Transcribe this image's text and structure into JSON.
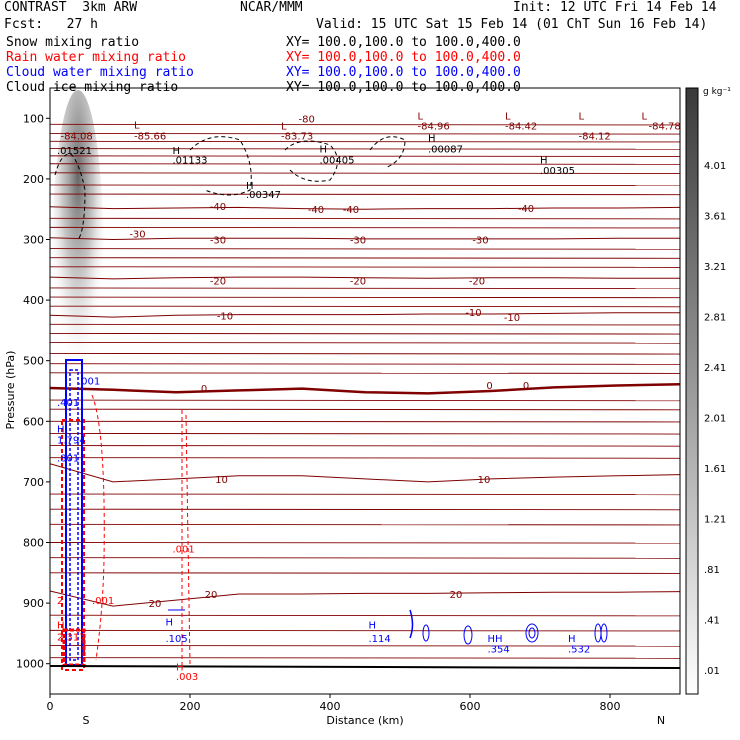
{
  "header": {
    "model": "CONTRAST  3km ARW",
    "org": "NCAR/MMM",
    "init": "Init: 12 UTC Fri 14 Feb 14",
    "fcst": "Fcst:   27 h",
    "valid": "Valid: 15 UTC Sat 15 Feb 14 (01 ChT Sun 16 Feb 14)",
    "fields": [
      {
        "label": "Snow mixing ratio",
        "xy": "XY= 100.0,100.0 to 100.0,400.0",
        "color": "#000000"
      },
      {
        "label": "Rain water mixing ratio",
        "xy": "XY= 100.0,100.0 to 100.0,400.0",
        "color": "#ff0000"
      },
      {
        "label": "Cloud water mixing ratio",
        "xy": "XY= 100.0,100.0 to 100.0,400.0",
        "color": "#0000ff"
      },
      {
        "label": "Cloud ice mixing ratio",
        "xy": "XY= 100.0,100.0 to 100.0,400.0",
        "color": "#000000"
      }
    ]
  },
  "chart_data": {
    "type": "contour cross-section",
    "xlabel": "Distance (km)",
    "ylabel": "Pressure (hPa)",
    "x_ticks": [
      0,
      200,
      400,
      600,
      800
    ],
    "y_ticks": [
      100,
      200,
      300,
      400,
      500,
      600,
      700,
      800,
      900,
      1000
    ],
    "xlim": [
      0,
      900
    ],
    "ylim": [
      1050,
      50
    ],
    "endpoints": [
      "S",
      "N"
    ],
    "colorbar": {
      "unit": "g kg⁻¹",
      "levels": [
        "4.01",
        "3.61",
        "3.21",
        "2.81",
        "2.41",
        "2.01",
        "1.61",
        "1.21",
        ".81",
        ".41",
        ".01"
      ]
    },
    "temperature_contours": {
      "color": "#800000",
      "isotherms": [
        {
          "value": 0,
          "labels": [
            {
              "x": 220,
              "p": 545,
              "t": "0"
            },
            {
              "x": 628,
              "p": 540,
              "t": "0"
            },
            {
              "x": 680,
              "p": 540,
              "t": "0"
            }
          ],
          "p": [
            545,
            548,
            552,
            549,
            546,
            552,
            554,
            550,
            544,
            541,
            539
          ]
        },
        {
          "value": 10,
          "labels": [
            {
              "x": 245,
              "p": 695,
              "t": "10"
            },
            {
              "x": 620,
              "p": 695,
              "t": "10"
            }
          ],
          "p": [
            670,
            700,
            695,
            690,
            690,
            695,
            700,
            695,
            692,
            690,
            688
          ]
        },
        {
          "value": 20,
          "labels": [
            {
              "x": 150,
              "p": 900,
              "t": "20"
            },
            {
              "x": 230,
              "p": 885,
              "t": "20"
            },
            {
              "x": 580,
              "p": 885,
              "t": "20"
            }
          ],
          "p": [
            880,
            905,
            895,
            885,
            885,
            884,
            884,
            883,
            882,
            882,
            881
          ]
        },
        {
          "value": -10,
          "labels": [
            {
              "x": 250,
              "p": 425,
              "t": "-10"
            },
            {
              "x": 605,
              "p": 420,
              "t": "-10"
            },
            {
              "x": 660,
              "p": 428,
              "t": "-10"
            }
          ],
          "p": [
            425,
            428,
            425,
            424,
            424,
            424,
            423,
            423,
            422,
            421,
            421
          ]
        },
        {
          "value": -20,
          "labels": [
            {
              "x": 240,
              "p": 368,
              "t": "-20"
            },
            {
              "x": 440,
              "p": 368,
              "t": "-20"
            },
            {
              "x": 610,
              "p": 368,
              "t": "-20"
            }
          ],
          "p": [
            362,
            365,
            363,
            362,
            362,
            363,
            364,
            363,
            363,
            364,
            364
          ]
        },
        {
          "value": -30,
          "labels": [
            {
              "x": 125,
              "p": 290,
              "t": "-30"
            },
            {
              "x": 240,
              "p": 300,
              "t": "-30"
            },
            {
              "x": 440,
              "p": 300,
              "t": "-30"
            },
            {
              "x": 615,
              "p": 300,
              "t": "-30"
            }
          ],
          "p": [
            297,
            300,
            298,
            298,
            298,
            299,
            299,
            299,
            299,
            298,
            298
          ]
        },
        {
          "value": -40,
          "labels": [
            {
              "x": 240,
              "p": 245,
              "t": "-40"
            },
            {
              "x": 380,
              "p": 250,
              "t": "-40"
            },
            {
              "x": 430,
              "p": 250,
              "t": "-40"
            },
            {
              "x": 680,
              "p": 248,
              "t": "-40"
            }
          ],
          "p": [
            246,
            249,
            248,
            247,
            249,
            250,
            249,
            249,
            248,
            248,
            247
          ]
        }
      ]
    },
    "tropopause_labels": [
      {
        "x": 120,
        "p": 110,
        "t": "L"
      },
      {
        "x": 120,
        "p": 128,
        "t": "-85.66"
      },
      {
        "x": 355,
        "p": 100,
        "t": "-80"
      },
      {
        "x": 330,
        "p": 112,
        "t": "L"
      },
      {
        "x": 330,
        "p": 128,
        "t": "-83.73"
      },
      {
        "x": 525,
        "p": 95,
        "t": "L"
      },
      {
        "x": 525,
        "p": 112,
        "t": "-84.96"
      },
      {
        "x": 650,
        "p": 95,
        "t": "L"
      },
      {
        "x": 650,
        "p": 112,
        "t": "-84.42"
      },
      {
        "x": 755,
        "p": 95,
        "t": "L"
      },
      {
        "x": 755,
        "p": 128,
        "t": "-84.12"
      },
      {
        "x": 845,
        "p": 95,
        "t": "L"
      },
      {
        "x": 855,
        "p": 112,
        "t": "-84.78"
      },
      {
        "x": 15,
        "p": 128,
        "t": "-84.08"
      }
    ],
    "max_labels": [
      {
        "x": 10,
        "p": 152,
        "t": ".01521",
        "color": "#000000"
      },
      {
        "x": 175,
        "p": 152,
        "t": "H",
        "color": "#000000"
      },
      {
        "x": 175,
        "p": 168,
        "t": ".01133",
        "color": "#000000"
      },
      {
        "x": 280,
        "p": 210,
        "t": "H",
        "color": "#000000"
      },
      {
        "x": 280,
        "p": 225,
        "t": ".00347",
        "color": "#000000"
      },
      {
        "x": 385,
        "p": 150,
        "t": "H",
        "color": "#000000"
      },
      {
        "x": 385,
        "p": 168,
        "t": ".00405",
        "color": "#000000"
      },
      {
        "x": 540,
        "p": 132,
        "t": "H",
        "color": "#000000"
      },
      {
        "x": 540,
        "p": 150,
        "t": ".00087",
        "color": "#000000"
      },
      {
        "x": 700,
        "p": 168,
        "t": "H",
        "color": "#000000"
      },
      {
        "x": 700,
        "p": 185,
        "t": ".00305",
        "color": "#000000"
      },
      {
        "x": 40,
        "p": 533,
        "t": ".001",
        "color": "#0000ff"
      },
      {
        "x": 10,
        "p": 568,
        "t": ".401",
        "color": "#0000ff"
      },
      {
        "x": 10,
        "p": 612,
        "t": "H",
        "color": "#0000ff"
      },
      {
        "x": 10,
        "p": 630,
        "t": "1.794",
        "color": "#0000ff"
      },
      {
        "x": 10,
        "p": 660,
        "t": ".801",
        "color": "#0000ff"
      },
      {
        "x": 10,
        "p": 895,
        "t": "2",
        "color": "#ff0000"
      },
      {
        "x": 60,
        "p": 895,
        "t": ".001",
        "color": "#ff0000"
      },
      {
        "x": 10,
        "p": 935,
        "t": "H",
        "color": "#ff0000"
      },
      {
        "x": 10,
        "p": 955,
        "t": "2.317",
        "color": "#ff0000"
      },
      {
        "x": 175,
        "p": 810,
        "t": ".001",
        "color": "#ff0000"
      },
      {
        "x": 180,
        "p": 1005,
        "t": "H",
        "color": "#ff0000"
      },
      {
        "x": 180,
        "p": 1020,
        "t": ".003",
        "color": "#ff0000"
      },
      {
        "x": 165,
        "p": 930,
        "t": "H",
        "color": "#0000ff"
      },
      {
        "x": 165,
        "p": 958,
        "t": ".105",
        "color": "#0000ff"
      },
      {
        "x": 455,
        "p": 935,
        "t": "H",
        "color": "#0000ff"
      },
      {
        "x": 455,
        "p": 958,
        "t": ".114",
        "color": "#0000ff"
      },
      {
        "x": 625,
        "p": 958,
        "t": "HH",
        "color": "#0000ff"
      },
      {
        "x": 625,
        "p": 975,
        "t": ".354",
        "color": "#0000ff"
      },
      {
        "x": 740,
        "p": 958,
        "t": "H",
        "color": "#0000ff"
      },
      {
        "x": 740,
        "p": 975,
        "t": ".532",
        "color": "#0000ff"
      }
    ]
  }
}
